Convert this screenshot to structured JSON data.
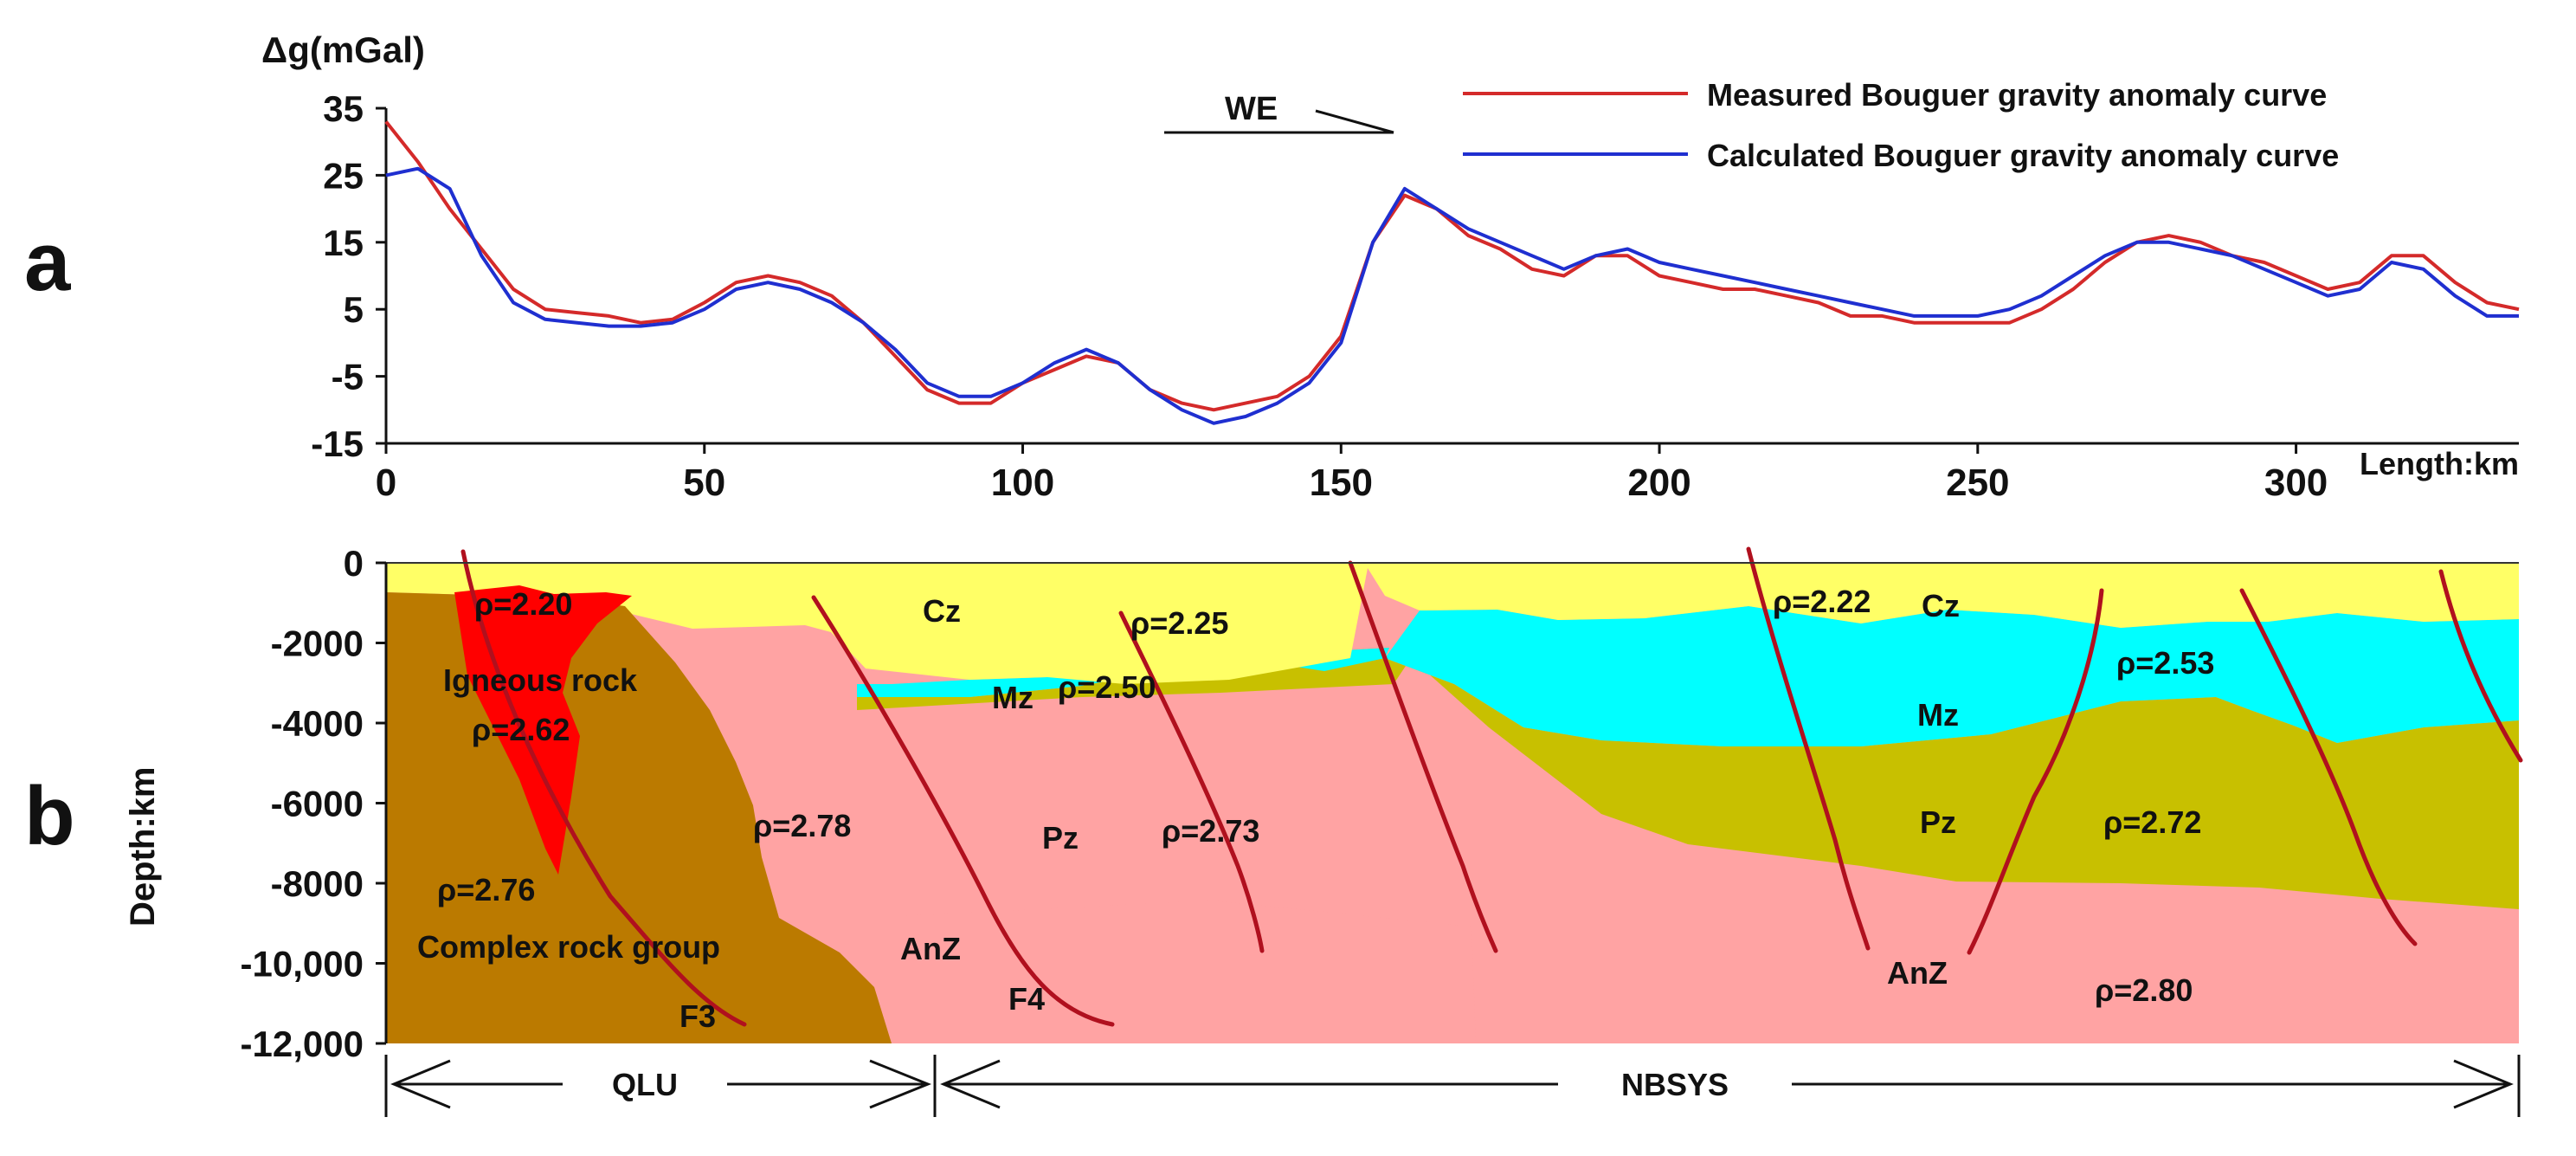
{
  "panels": {
    "a_label": "a",
    "b_label": "b"
  },
  "colors": {
    "measured": "#d42a2a",
    "calculated": "#1f2fd0",
    "cz": "#ffff66",
    "mz": "#00ffff",
    "pz": "#c8c000",
    "anz": "#ffa3a3",
    "complex": "#bb7a00",
    "igneous": "#ff0000",
    "fault": "#b0101e"
  },
  "chart_data": [
    {
      "type": "line",
      "ylabel": "Δg(mGal)",
      "xlabel": "Length:km",
      "xlim": [
        0,
        335
      ],
      "ylim": [
        -15,
        35
      ],
      "xticks": [
        "0",
        "50",
        "100",
        "150",
        "200",
        "250",
        "300"
      ],
      "yticks": [
        "35",
        "25",
        "15",
        "5",
        "-5",
        "-15"
      ],
      "direction_label": "WE",
      "legend": [
        "Measured Bouguer gravity anomaly curve",
        "Calculated Bouguer gravity anomaly curve"
      ],
      "series": [
        {
          "name": "Measured Bouguer gravity anomaly curve",
          "x": [
            0,
            5,
            10,
            15,
            20,
            25,
            30,
            35,
            40,
            45,
            50,
            55,
            60,
            65,
            70,
            75,
            80,
            85,
            90,
            95,
            100,
            105,
            110,
            115,
            120,
            125,
            130,
            135,
            140,
            145,
            150,
            155,
            160,
            165,
            170,
            175,
            180,
            185,
            190,
            195,
            200,
            205,
            210,
            215,
            220,
            225,
            230,
            235,
            240,
            245,
            250,
            255,
            260,
            265,
            270,
            275,
            280,
            285,
            290,
            295,
            300,
            305,
            310,
            315,
            320,
            325,
            330,
            335
          ],
          "values": [
            33,
            27,
            20,
            14,
            8,
            5,
            4.5,
            4,
            3,
            3.5,
            6,
            9,
            10,
            9,
            7,
            3,
            -2,
            -7,
            -9,
            -9,
            -6,
            -4,
            -2,
            -3,
            -7,
            -9,
            -10,
            -9,
            -8,
            -5,
            1,
            15,
            22,
            20,
            16,
            14,
            11,
            10,
            13,
            13,
            10,
            9,
            8,
            8,
            7,
            6,
            4,
            4,
            3,
            3,
            3,
            3,
            5,
            8,
            12,
            15,
            16,
            15,
            13,
            12,
            10,
            8,
            9,
            13,
            13,
            9,
            6,
            5
          ]
        },
        {
          "name": "Calculated Bouguer gravity anomaly curve",
          "x": [
            0,
            5,
            10,
            15,
            20,
            25,
            30,
            35,
            40,
            45,
            50,
            55,
            60,
            65,
            70,
            75,
            80,
            85,
            90,
            95,
            100,
            105,
            110,
            115,
            120,
            125,
            130,
            135,
            140,
            145,
            150,
            155,
            160,
            165,
            170,
            175,
            180,
            185,
            190,
            195,
            200,
            205,
            210,
            215,
            220,
            225,
            230,
            235,
            240,
            245,
            250,
            255,
            260,
            265,
            270,
            275,
            280,
            285,
            290,
            295,
            300,
            305,
            310,
            315,
            320,
            325,
            330,
            335
          ],
          "values": [
            25,
            26,
            23,
            13,
            6,
            3.5,
            3,
            2.5,
            2.5,
            3,
            5,
            8,
            9,
            8,
            6,
            3,
            -1,
            -6,
            -8,
            -8,
            -6,
            -3,
            -1,
            -3,
            -7,
            -10,
            -12,
            -11,
            -9,
            -6,
            0,
            15,
            23,
            20,
            17,
            15,
            13,
            11,
            13,
            14,
            12,
            11,
            10,
            9,
            8,
            7,
            6,
            5,
            4,
            4,
            4,
            5,
            7,
            10,
            13,
            15,
            15,
            14,
            13,
            11,
            9,
            7,
            8,
            12,
            11,
            7,
            4,
            4
          ]
        }
      ]
    },
    {
      "type": "cross-section",
      "ylabel": "Depth:km",
      "ylim": [
        -12000,
        0
      ],
      "yticks": [
        "0",
        "-2000",
        "-4000",
        "-6000",
        "-8000",
        "-10,000",
        "-12,000"
      ],
      "units": {
        "cz_left": "Cz",
        "cz_right": "Cz",
        "mz_left": "Mz",
        "mz_right": "Mz",
        "pz_left": "Pz",
        "pz_right": "Pz",
        "anz_left": "AnZ",
        "anz_right": "AnZ",
        "igneous": "Igneous rock",
        "complex": "Complex rock group"
      },
      "densities": {
        "cz_left": "ρ=2.20",
        "cz_mid": "ρ=2.25",
        "cz_right": "ρ=2.22",
        "mz_left": "ρ=2.50",
        "mz_right": "ρ=2.53",
        "igneous": "ρ=2.62",
        "complex": "ρ=2.76",
        "anz_left": "ρ=2.78",
        "pz_left": "ρ=2.73",
        "pz_right": "ρ=2.72",
        "anz_right": "ρ=2.80"
      },
      "faults": [
        "F3",
        "F4"
      ],
      "zones": [
        "QLU",
        "NBSYS"
      ]
    }
  ]
}
